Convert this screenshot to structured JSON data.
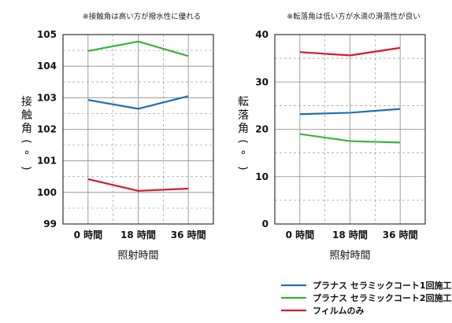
{
  "legend": [
    {
      "label": "プラナス セラミックコート1回施工",
      "color": "#1f6fb4"
    },
    {
      "label": "プラナス セラミックコート2回施工",
      "color": "#3cb043"
    },
    {
      "label": "フィルムのみ",
      "color": "#d7192a"
    }
  ],
  "chart_data": [
    {
      "type": "line",
      "title": "※接触角は高い方が撥水性に優れる",
      "xlabel": "照射時間",
      "ylabel": "接触角(°)",
      "ylabel_chars": [
        "接",
        "触",
        "角",
        "(",
        "°",
        ")"
      ],
      "categories": [
        "0 時間",
        "18 時間",
        "36 時間"
      ],
      "ylim": [
        99,
        105
      ],
      "yticks": [
        99,
        100,
        101,
        102,
        103,
        104,
        105
      ],
      "grid": true,
      "series": [
        {
          "name": "プラナス セラミックコート1回施工",
          "color": "#1f6fb4",
          "values": [
            102.93,
            102.65,
            103.05
          ]
        },
        {
          "name": "プラナス セラミックコート2回施工",
          "color": "#3cb043",
          "values": [
            104.48,
            104.78,
            104.32
          ]
        },
        {
          "name": "フィルムのみ",
          "color": "#d7192a",
          "values": [
            100.42,
            100.05,
            100.12
          ]
        }
      ]
    },
    {
      "type": "line",
      "title": "※転落角は低い方が水滴の滑落性が良い",
      "xlabel": "照射時間",
      "ylabel": "転落角(°)",
      "ylabel_chars": [
        "転",
        "落",
        "角",
        "(",
        "°",
        ")"
      ],
      "categories": [
        "0 時間",
        "18 時間",
        "36 時間"
      ],
      "ylim": [
        0,
        40
      ],
      "yticks": [
        0,
        10,
        20,
        30,
        40
      ],
      "grid": true,
      "series": [
        {
          "name": "プラナス セラミックコート1回施工",
          "color": "#1f6fb4",
          "values": [
            23.2,
            23.5,
            24.3
          ]
        },
        {
          "name": "プラナス セラミックコート2回施工",
          "color": "#3cb043",
          "values": [
            19.0,
            17.5,
            17.2
          ]
        },
        {
          "name": "フィルムのみ",
          "color": "#d7192a",
          "values": [
            36.3,
            35.6,
            37.2
          ]
        }
      ]
    }
  ]
}
